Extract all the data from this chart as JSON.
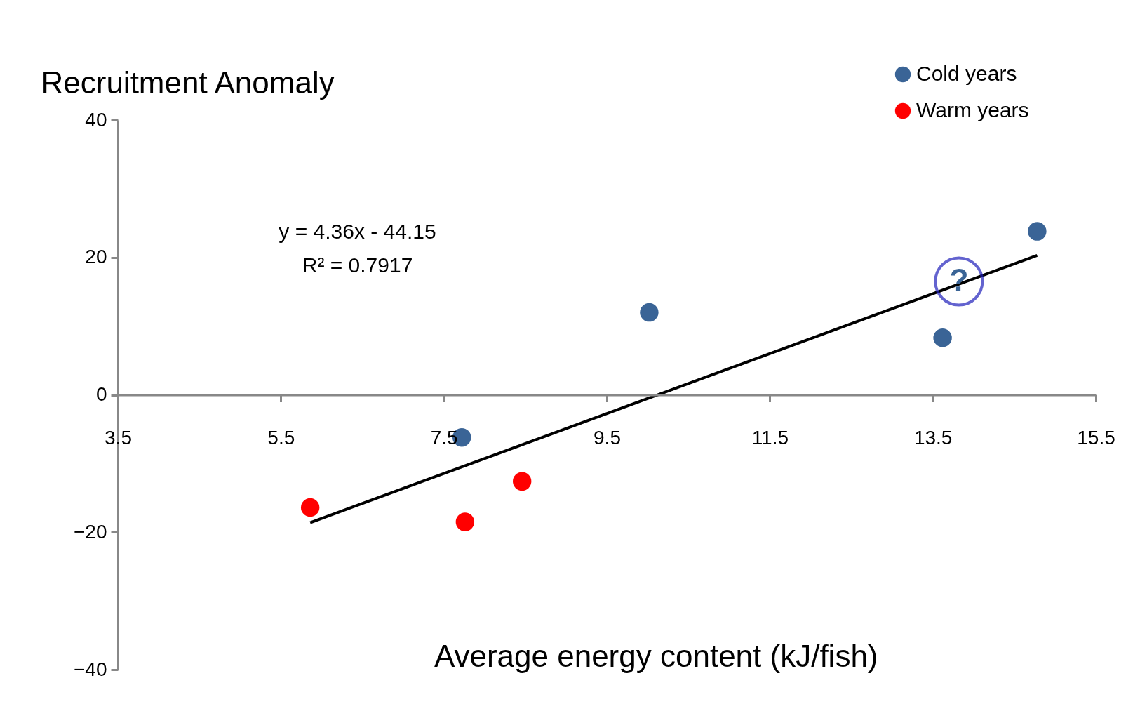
{
  "chart_data": {
    "type": "scatter",
    "xlabel": "Average energy content (kJ/fish)",
    "ylabel": "Recruitment Anomaly",
    "xlim": [
      3.5,
      15.5
    ],
    "xticks": [
      3.5,
      5.5,
      7.5,
      9.5,
      11.5,
      13.5,
      15.5
    ],
    "ylim": [
      -40,
      40
    ],
    "yticks": [
      -40,
      -20,
      0,
      20,
      40
    ],
    "grid": false,
    "legend": "top right",
    "marker": "circle",
    "series": [
      {
        "name": "Cold years",
        "color": "#3a6496",
        "x": [
          7.72,
          10.02,
          13.62,
          14.78
        ],
        "values": [
          -6.2,
          12.0,
          8.3,
          23.8
        ]
      },
      {
        "name": "Warm years",
        "color": "#ff0000",
        "x": [
          5.86,
          7.76,
          8.46
        ],
        "values": [
          -16.4,
          -18.5,
          -12.6
        ]
      },
      {
        "type": "line",
        "marker": "none",
        "color": "#000000",
        "x": [
          5.86,
          14.78
        ],
        "values": [
          -18.6,
          20.3
        ]
      }
    ],
    "annotations": [
      "y = 4.36x - 44.15",
      "R² = 0.7917",
      {
        "text": "?",
        "x": 13.82,
        "y": 16.5
      }
    ]
  }
}
